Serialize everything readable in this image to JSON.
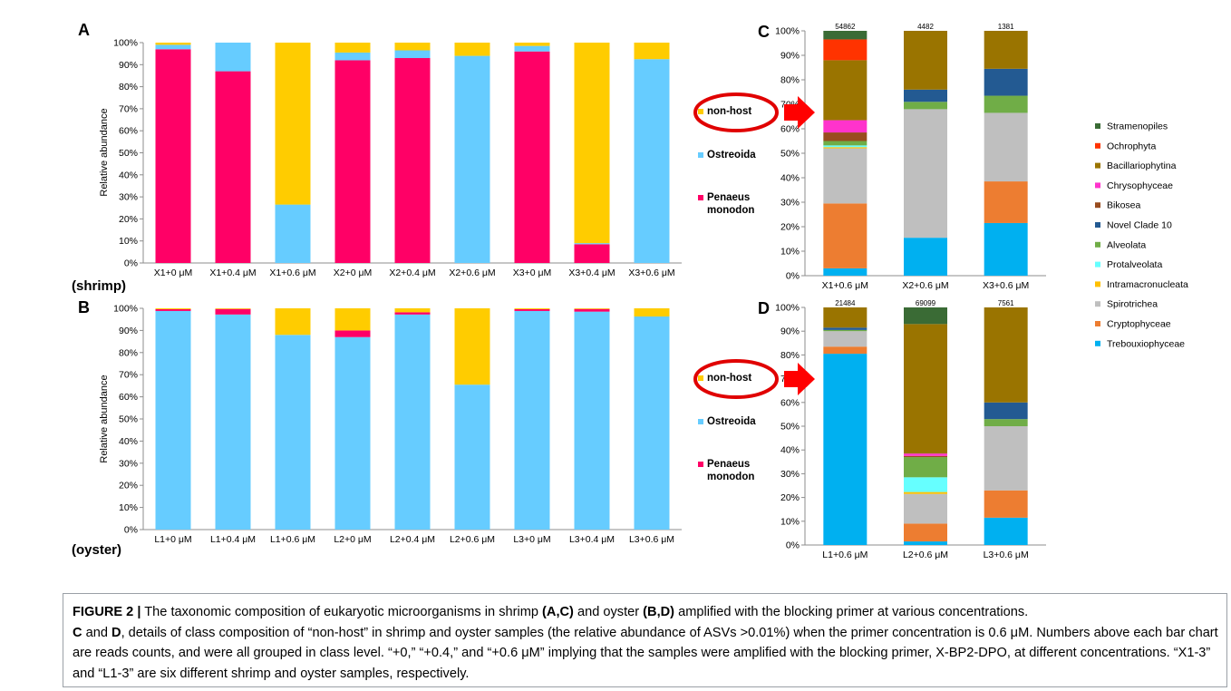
{
  "colors": {
    "Penaeus_monodon": "#FF0066",
    "Ostreoida": "#66CCFF",
    "non_host": "#FFCC00",
    "Stramenopiles": "#3A6B35",
    "Ochrophyta": "#FF3300",
    "Bacillariophytina": "#9A7400",
    "Chrysophyceae": "#FF33CC",
    "Bikosea": "#994C1F",
    "Novel Clade 10": "#235A92",
    "Alveolata": "#70AD47",
    "Protalveolata": "#66FFFF",
    "Intramacronucleata": "#FFC000",
    "Spirotrichea": "#BFBFBF",
    "Cryptophyceae": "#ED7D31",
    "Trebouxiophyceae": "#00B0F0",
    "arrow": "#FF0000",
    "ellipse": "#E00000"
  },
  "left_legend": {
    "items": [
      {
        "key": "non_host",
        "label": "non-host"
      },
      {
        "key": "Ostreoida",
        "label": "Ostreoida"
      },
      {
        "key": "Penaeus_monodon",
        "label": "Penaeus monodon",
        "lines": [
          "Penaeus",
          "monodon"
        ]
      }
    ]
  },
  "right_legend": {
    "items": [
      "Stramenopiles",
      "Ochrophyta",
      "Bacillariophytina",
      "Chrysophyceae",
      "Bikosea",
      "Novel Clade 10",
      "Alveolata",
      "Protalveolata",
      "Intramacronucleata",
      "Spirotrichea",
      "Cryptophyceae",
      "Trebouxiophyceae"
    ]
  },
  "caption": {
    "fig_label": "FIGURE 2 |",
    "s1": " The taxonomic composition of eukaryotic microorganisms in shrimp ",
    "b1": "(A,C)",
    "s2": " and oyster ",
    "b2": "(B,D)",
    "s3": " amplified with the blocking primer at various concentrations.",
    "b3": "C",
    "s4": " and ",
    "b4": "D",
    "s5": ", details of class composition of “non-host” in shrimp and oyster samples (the relative abundance of ASVs >0.01%) when the primer concentration is 0.6 μM. Numbers above each bar chart are reads counts, and were all grouped in class level. “+0,” “+0.4,” and “+0.6 μM” implying that the samples were amplified with the blocking primer, X-BP2-DPO, at different concentrations. “X1-3” and “L1-3” are six different shrimp and oyster samples, respectively."
  },
  "chart_data": [
    {
      "panel": "A",
      "type": "bar",
      "stacked": true,
      "sample_group": "(shrimp)",
      "ylabel": "Relative abundance",
      "ylim": [
        0,
        100
      ],
      "yticks": [
        "0%",
        "10%",
        "20%",
        "30%",
        "40%",
        "50%",
        "60%",
        "70%",
        "80%",
        "90%",
        "100%"
      ],
      "categories": [
        "X1+0 μM",
        "X1+0.4 μM",
        "X1+0.6 μM",
        "X2+0 μM",
        "X2+0.4 μM",
        "X2+0.6 μM",
        "X3+0 μM",
        "X3+0.4 μM",
        "X3+0.6 μM"
      ],
      "series": [
        {
          "key": "Penaeus_monodon",
          "name": "Penaeus monodon",
          "values": [
            97,
            87,
            0,
            92,
            93,
            0,
            96,
            8.5,
            0
          ]
        },
        {
          "key": "Ostreoida",
          "name": "Ostreoida",
          "values": [
            2,
            13,
            26.5,
            3.5,
            3.5,
            94,
            2.5,
            0.5,
            92.5
          ]
        },
        {
          "key": "non_host",
          "name": "non-host",
          "values": [
            1,
            0,
            73.5,
            4.5,
            3.5,
            6,
            1.5,
            91,
            7.5
          ]
        }
      ]
    },
    {
      "panel": "B",
      "type": "bar",
      "stacked": true,
      "sample_group": "(oyster)",
      "ylabel": "Relative abundance",
      "ylim": [
        0,
        100
      ],
      "yticks": [
        "0%",
        "10%",
        "20%",
        "30%",
        "40%",
        "50%",
        "60%",
        "70%",
        "80%",
        "90%",
        "100%"
      ],
      "categories": [
        "L1+0 μM",
        "L1+0.4 μM",
        "L1+0.6 μM",
        "L2+0 μM",
        "L2+0.4 μM",
        "L2+0.6 μM",
        "L3+0 μM",
        "L3+0.4 μM",
        "L3+0.6 μM"
      ],
      "series": [
        {
          "key": "Ostreoida",
          "name": "Ostreoida",
          "values": [
            98.8,
            97.2,
            88,
            87,
            97.2,
            65.5,
            98.8,
            98.5,
            96.3
          ]
        },
        {
          "key": "Penaeus_monodon",
          "name": "Penaeus monodon",
          "values": [
            0.8,
            2.5,
            0,
            3,
            1,
            0,
            0.8,
            1.2,
            0
          ]
        },
        {
          "key": "non_host",
          "name": "non-host",
          "values": [
            0.4,
            0.3,
            12,
            10,
            1.8,
            34.5,
            0.4,
            0.3,
            3.7
          ]
        }
      ]
    },
    {
      "panel": "C",
      "type": "bar",
      "stacked": true,
      "ylim": [
        0,
        100
      ],
      "yticks": [
        "0%",
        "10%",
        "20%",
        "30%",
        "40%",
        "50%",
        "60%",
        "70%",
        "80%",
        "90%",
        "100%"
      ],
      "categories": [
        "X1+0.6 μM",
        "X2+0.6 μM",
        "X3+0.6 μM"
      ],
      "read_counts": [
        "54862",
        "4482",
        "1381"
      ],
      "series": [
        {
          "name": "Trebouxiophyceae",
          "values": [
            3,
            15.5,
            21.5
          ]
        },
        {
          "name": "Cryptophyceae",
          "values": [
            26.5,
            0,
            17
          ]
        },
        {
          "name": "Spirotrichea",
          "values": [
            22.5,
            52.5,
            28
          ]
        },
        {
          "name": "Intramacronucleata",
          "values": [
            0.5,
            0,
            0
          ]
        },
        {
          "name": "Protalveolata",
          "values": [
            0.7,
            0,
            0
          ]
        },
        {
          "name": "Alveolata",
          "values": [
            1.8,
            3,
            7
          ]
        },
        {
          "name": "Bikosea",
          "values": [
            3.5,
            0,
            0
          ]
        },
        {
          "name": "Novel Clade 10",
          "values": [
            0,
            5,
            11
          ]
        },
        {
          "name": "Chrysophyceae",
          "values": [
            5,
            0,
            0
          ]
        },
        {
          "name": "Bacillariophytina",
          "values": [
            24.5,
            24,
            15.5
          ]
        },
        {
          "name": "Ochrophyta",
          "values": [
            8.5,
            0,
            0
          ]
        },
        {
          "name": "Stramenopiles",
          "values": [
            3.5,
            0,
            0
          ]
        }
      ]
    },
    {
      "panel": "D",
      "type": "bar",
      "stacked": true,
      "ylim": [
        0,
        100
      ],
      "yticks": [
        "0%",
        "10%",
        "20%",
        "30%",
        "40%",
        "50%",
        "60%",
        "70%",
        "80%",
        "90%",
        "100%"
      ],
      "categories": [
        "L1+0.6 μM",
        "L2+0.6 μM",
        "L3+0.6 μM"
      ],
      "read_counts": [
        "21484",
        "69099",
        "7561"
      ],
      "series": [
        {
          "name": "Trebouxiophyceae",
          "values": [
            80.5,
            1.5,
            11.5
          ]
        },
        {
          "name": "Cryptophyceae",
          "values": [
            3,
            7.5,
            11.5
          ]
        },
        {
          "name": "Spirotrichea",
          "values": [
            6.5,
            12.5,
            27
          ]
        },
        {
          "name": "Intramacronucleata",
          "values": [
            0,
            0.8,
            0
          ]
        },
        {
          "name": "Protalveolata",
          "values": [
            0,
            6.2,
            0
          ]
        },
        {
          "name": "Alveolata",
          "values": [
            0.5,
            8.5,
            3
          ]
        },
        {
          "name": "Bikosea",
          "values": [
            0,
            0.5,
            0
          ]
        },
        {
          "name": "Novel Clade 10",
          "values": [
            1,
            0,
            7
          ]
        },
        {
          "name": "Chrysophyceae",
          "values": [
            0,
            1,
            0
          ]
        },
        {
          "name": "Bacillariophytina",
          "values": [
            8.5,
            54.5,
            40
          ]
        },
        {
          "name": "Ochrophyta",
          "values": [
            0,
            0,
            0
          ]
        },
        {
          "name": "Stramenopiles",
          "values": [
            0,
            7,
            0
          ]
        }
      ]
    }
  ]
}
